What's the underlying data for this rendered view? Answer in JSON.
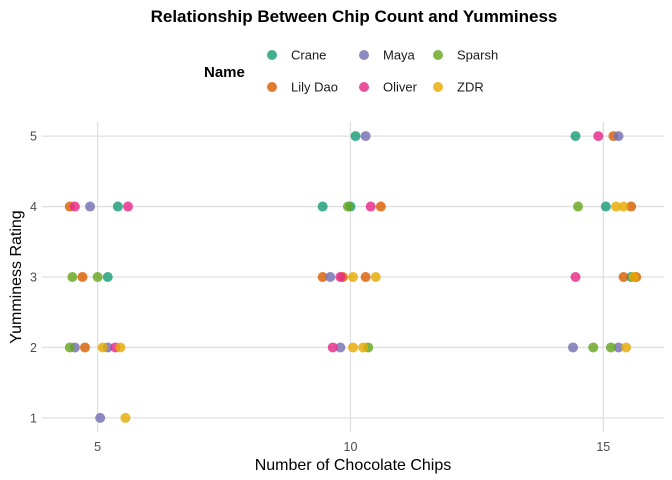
{
  "chart_data": {
    "type": "scatter",
    "title": "Relationship Between Chip Count and Yumminess",
    "xlabel": "Number of Chocolate Chips",
    "ylabel": "Yumminess Rating",
    "xlim": [
      3.9,
      16.2
    ],
    "ylim": [
      0.8,
      5.2
    ],
    "x_ticks": [
      5,
      10,
      15
    ],
    "y_ticks": [
      1,
      2,
      3,
      4,
      5
    ],
    "grid": true,
    "legend": {
      "title": "Name",
      "position": "top"
    },
    "series": [
      {
        "name": "Crane",
        "color": "#1b9e77",
        "points": [
          [
            5.4,
            4
          ],
          [
            5.2,
            3
          ],
          [
            9.45,
            4
          ],
          [
            10.0,
            4
          ],
          [
            10.1,
            5
          ],
          [
            14.45,
            5
          ],
          [
            15.05,
            4
          ],
          [
            15.55,
            3
          ]
        ]
      },
      {
        "name": "Lily Dao",
        "color": "#d95f02",
        "points": [
          [
            4.45,
            4
          ],
          [
            4.7,
            3
          ],
          [
            4.75,
            2
          ],
          [
            9.45,
            3
          ],
          [
            9.85,
            3
          ],
          [
            10.3,
            3
          ],
          [
            10.6,
            4
          ],
          [
            15.2,
            5
          ],
          [
            15.55,
            4
          ],
          [
            15.4,
            3
          ],
          [
            15.65,
            3
          ]
        ]
      },
      {
        "name": "Maya",
        "color": "#7570b3",
        "points": [
          [
            4.85,
            4
          ],
          [
            4.55,
            2
          ],
          [
            5.05,
            1
          ],
          [
            5.2,
            2
          ],
          [
            9.6,
            3
          ],
          [
            9.8,
            2
          ],
          [
            10.3,
            5
          ],
          [
            14.4,
            2
          ],
          [
            15.3,
            2
          ],
          [
            15.3,
            5
          ]
        ]
      },
      {
        "name": "Oliver",
        "color": "#e7298a",
        "points": [
          [
            4.55,
            4
          ],
          [
            5.35,
            2
          ],
          [
            5.6,
            4
          ],
          [
            9.65,
            2
          ],
          [
            9.8,
            3
          ],
          [
            10.4,
            4
          ],
          [
            14.45,
            3
          ],
          [
            14.9,
            5
          ]
        ]
      },
      {
        "name": "Sparsh",
        "color": "#66a61e",
        "points": [
          [
            4.5,
            3
          ],
          [
            4.45,
            2
          ],
          [
            5.0,
            3
          ],
          [
            9.95,
            4
          ],
          [
            10.35,
            2
          ],
          [
            14.5,
            4
          ],
          [
            14.8,
            2
          ],
          [
            15.15,
            2
          ]
        ]
      },
      {
        "name": "ZDR",
        "color": "#e6ab02",
        "points": [
          [
            5.1,
            2
          ],
          [
            5.45,
            2
          ],
          [
            5.55,
            1
          ],
          [
            10.05,
            3
          ],
          [
            10.05,
            2
          ],
          [
            10.25,
            2
          ],
          [
            10.5,
            3
          ],
          [
            15.25,
            4
          ],
          [
            15.4,
            4
          ],
          [
            15.45,
            2
          ],
          [
            15.6,
            3
          ]
        ]
      }
    ]
  }
}
